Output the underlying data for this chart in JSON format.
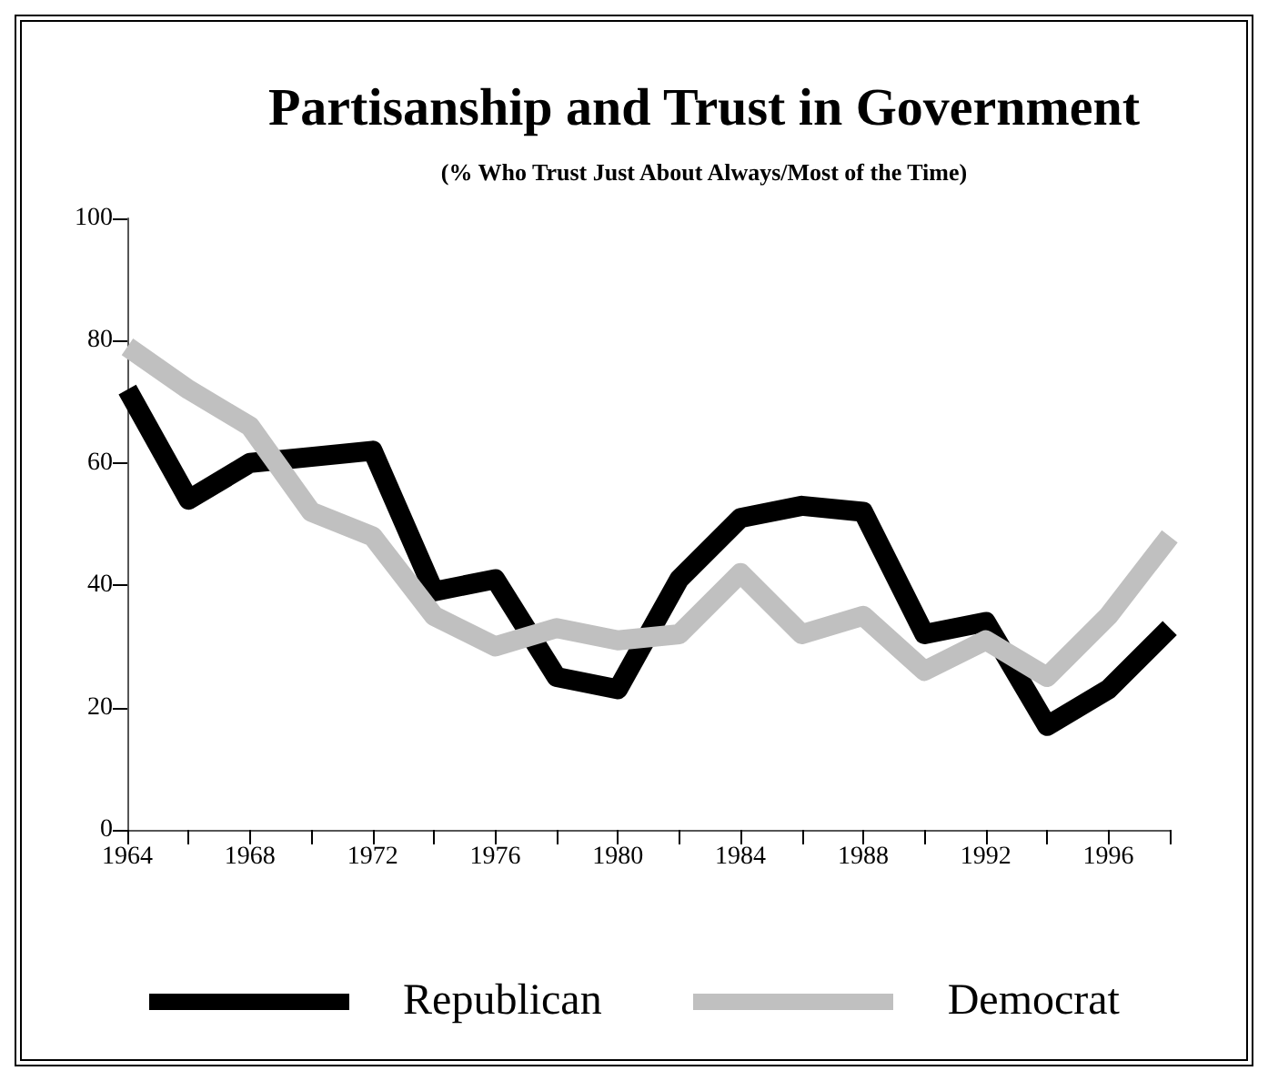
{
  "chart_data": {
    "type": "line",
    "title": "Partisanship and Trust in Government",
    "subtitle": "(% Who Trust Just About Always/Most of the Time)",
    "x": [
      1964,
      1966,
      1968,
      1970,
      1972,
      1974,
      1976,
      1978,
      1980,
      1982,
      1984,
      1986,
      1988,
      1990,
      1992,
      1994,
      1996,
      1998
    ],
    "series": [
      {
        "name": "Republican",
        "color": "#000000",
        "values": [
          72,
          54,
          60,
          61,
          62,
          39,
          41,
          25,
          23,
          41,
          51,
          53,
          52,
          32,
          34,
          17,
          23,
          33
        ]
      },
      {
        "name": "Democrat",
        "color": "#c0c0c0",
        "values": [
          79,
          72,
          66,
          52,
          48,
          35,
          30,
          33,
          31,
          32,
          42,
          32,
          35,
          26,
          31,
          25,
          35,
          48
        ]
      }
    ],
    "xlim": [
      1964,
      1998
    ],
    "xticks": [
      1964,
      {
        "value": 1966,
        "label": null
      },
      1968,
      {
        "value": 1970,
        "label": null
      },
      1972,
      {
        "value": 1974,
        "label": null
      },
      1976,
      {
        "value": 1978,
        "label": null
      },
      1980,
      {
        "value": 1982,
        "label": null
      },
      1984,
      {
        "value": 1986,
        "label": null
      },
      1988,
      {
        "value": 1990,
        "label": null
      },
      1992,
      {
        "value": 1994,
        "label": null
      },
      1996,
      {
        "value": 1998,
        "label": null
      }
    ],
    "ylim": [
      0,
      100
    ],
    "yticks": [
      0,
      20,
      40,
      60,
      80,
      100
    ],
    "grid": false,
    "legend": "bottom",
    "marker": "none",
    "line_style": "solid"
  }
}
